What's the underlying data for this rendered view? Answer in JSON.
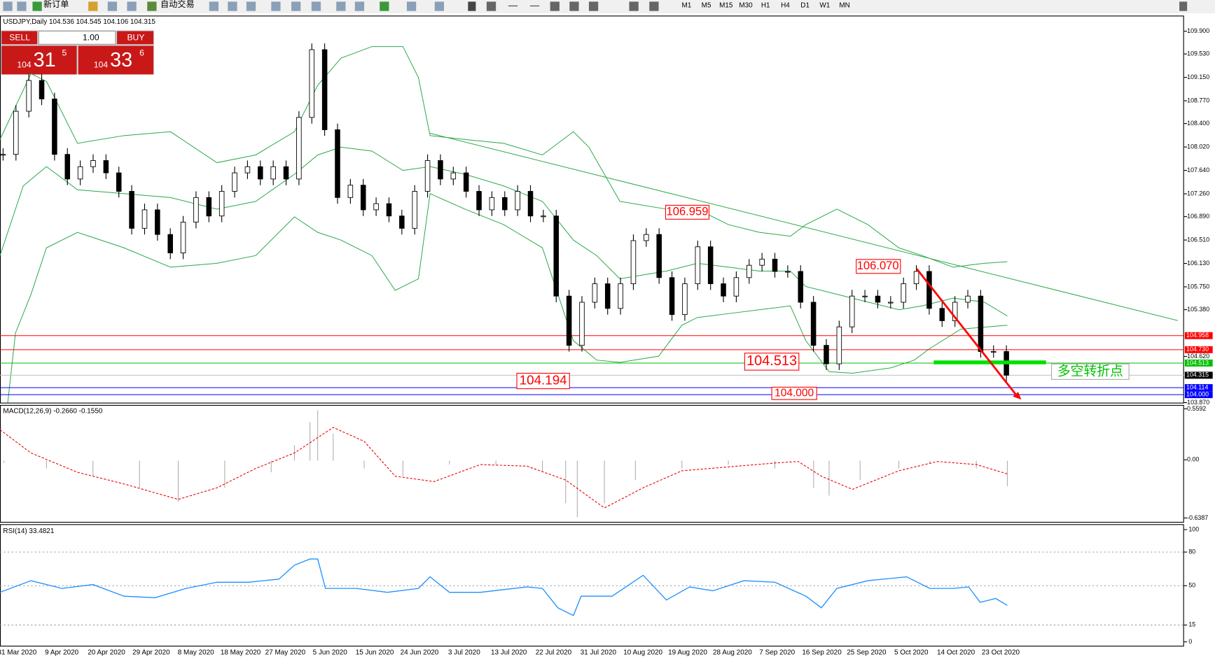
{
  "toolbar": {
    "new_order": "新订单",
    "auto_trading": "自动交易",
    "timeframes": [
      "M1",
      "M5",
      "M15",
      "M30",
      "H1",
      "H4",
      "D1",
      "W1",
      "MN"
    ]
  },
  "trade_panel": {
    "sell": "SELL",
    "buy": "BUY",
    "lots": "1.00",
    "sell_big": "104",
    "sell_pips": "31",
    "sell_frac": "5",
    "buy_big": "104",
    "buy_pips": "33",
    "buy_frac": "6"
  },
  "chart_data": {
    "type": "candlestick",
    "title": "USDJPY,Daily  104.536 104.545 104.106 104.315",
    "closes": [
      107.9,
      108.6,
      109.1,
      108.8,
      107.9,
      107.5,
      107.7,
      107.8,
      107.6,
      107.3,
      106.7,
      107.0,
      106.6,
      106.3,
      106.8,
      107.2,
      106.9,
      107.3,
      107.6,
      107.7,
      107.5,
      107.7,
      107.5,
      108.5,
      109.6,
      108.3,
      107.2,
      107.4,
      107.0,
      107.1,
      106.9,
      106.7,
      107.3,
      107.8,
      107.5,
      107.6,
      107.3,
      107.0,
      107.2,
      107.0,
      107.3,
      106.9,
      106.9,
      105.6,
      104.8,
      105.5,
      105.8,
      105.4,
      105.8,
      106.5,
      106.6,
      105.9,
      105.3,
      105.8,
      106.4,
      105.8,
      105.6,
      105.9,
      106.1,
      106.2,
      106.0,
      106.0,
      105.5,
      104.8,
      104.5,
      105.1,
      105.6,
      105.6,
      105.5,
      105.5,
      105.8,
      106.0,
      105.4,
      105.2,
      105.5,
      105.6,
      104.7,
      104.7,
      104.315
    ],
    "ylim": [
      103.87,
      110.14
    ],
    "yticks": [
      {
        "value": 109.9,
        "label": "109.900"
      },
      {
        "value": 109.53,
        "label": "109.530"
      },
      {
        "value": 109.15,
        "label": "109.150"
      },
      {
        "value": 108.77,
        "label": "108.770"
      },
      {
        "value": 108.4,
        "label": "108.400"
      },
      {
        "value": 108.02,
        "label": "108.020"
      },
      {
        "value": 107.64,
        "label": "107.640"
      },
      {
        "value": 107.26,
        "label": "107.260"
      },
      {
        "value": 106.89,
        "label": "106.890"
      },
      {
        "value": 106.51,
        "label": "106.510"
      },
      {
        "value": 106.13,
        "label": "106.130"
      },
      {
        "value": 105.75,
        "label": "105.750"
      },
      {
        "value": 105.38,
        "label": "105.380"
      },
      {
        "value": 104.62,
        "label": "104.620"
      },
      {
        "value": 103.87,
        "label": "103.870"
      }
    ],
    "price_lines": [
      {
        "value": 104.958,
        "label": "104.958",
        "color": "#ff0000"
      },
      {
        "value": 104.73,
        "label": "104.730",
        "color": "#ff0000"
      },
      {
        "value": 104.513,
        "label": "104.513",
        "color": "#00c000"
      },
      {
        "value": 104.315,
        "label": "104.315",
        "color": "#000000"
      },
      {
        "value": 104.114,
        "label": "104.114",
        "color": "#0000ff"
      },
      {
        "value": 104.0,
        "label": "104.000",
        "color": "#0000ff"
      }
    ],
    "categories": [
      "31 Mar 2020",
      "9 Apr 2020",
      "20 Apr 2020",
      "29 Apr 2020",
      "8 May 2020",
      "18 May 2020",
      "27 May 2020",
      "5 Jun 2020",
      "15 Jun 2020",
      "24 Jun 2020",
      "3 Jul 2020",
      "13 Jul 2020",
      "22 Jul 2020",
      "31 Jul 2020",
      "10 Aug 2020",
      "19 Aug 2020",
      "28 Aug 2020",
      "7 Sep 2020",
      "16 Sep 2020",
      "25 Sep 2020",
      "5 Oct 2020",
      "14 Oct 2020",
      "23 Oct 2020"
    ],
    "annotations": [
      "106.959",
      "106.070",
      "104.513",
      "104.194",
      "104.000",
      "多空转折点"
    ],
    "bull_color": "#ffffff",
    "bear_color": "#000000"
  },
  "macd": {
    "label": "MACD(12,26,9) -0.2660 -0.1550",
    "ylim": [
      -0.6387,
      0.5592
    ],
    "yticks": [
      {
        "value": 0.5592,
        "label": "0.5592"
      },
      {
        "value": 0,
        "label": "0.00"
      },
      {
        "value": -0.6387,
        "label": "-0.6387"
      }
    ]
  },
  "rsi": {
    "label": "RSI(14) 33.4821",
    "ylim": [
      0,
      100
    ],
    "yticks": [
      100,
      80,
      50,
      15,
      0
    ],
    "levels": [
      80,
      50,
      15
    ]
  }
}
